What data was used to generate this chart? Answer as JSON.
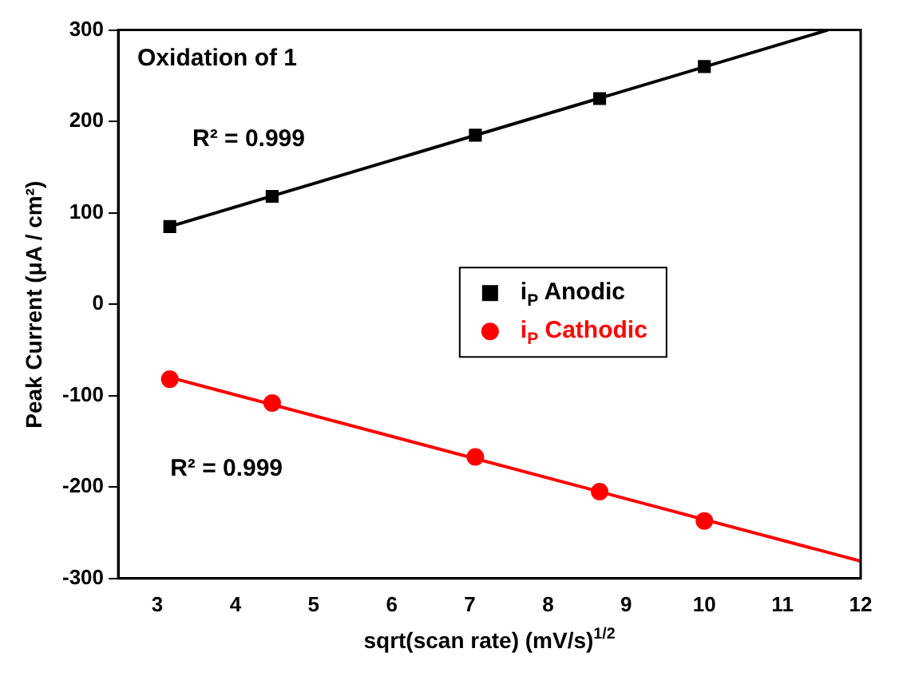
{
  "chart_data": {
    "type": "scatter",
    "xlabel": "sqrt(scan rate) (mV/s)$^{1/2}$",
    "ylabel": "Peak Current (μA / cm²)",
    "xlim": [
      2.5,
      12
    ],
    "xticks": [
      3,
      4,
      5,
      6,
      7,
      8,
      9,
      10,
      11,
      12
    ],
    "ylim": [
      -300,
      300
    ],
    "yticks": [
      -300,
      -200,
      -100,
      0,
      100,
      200,
      300
    ],
    "grid": false,
    "legend": "right",
    "annotations": [
      "Oxidation of 1",
      "R² = 0.999",
      "R² = 0.999"
    ],
    "series": [
      {
        "name": "i$_{P}$ Anodic",
        "type": "scatter",
        "marker": "square",
        "color": "#000000",
        "x": [
          3.16,
          4.47,
          7.07,
          8.66,
          10
        ],
        "values": [
          85,
          118,
          185,
          225,
          260
        ]
      },
      {
        "name": "i$_{P}$ Cathodic",
        "type": "scatter",
        "marker": "circle",
        "color": "#ff0000",
        "x": [
          3.16,
          4.47,
          7.07,
          8.66,
          10
        ],
        "values": [
          -82,
          -108,
          -167,
          -205,
          -237
        ]
      },
      {
        "type": "line",
        "marker": "none",
        "line_style": "solid",
        "color": "#000000",
        "x": [
          3.16,
          11.58
        ],
        "values": [
          85,
          300
        ]
      },
      {
        "type": "line",
        "marker": "none",
        "line_style": "solid",
        "color": "#ff0000",
        "x": [
          3.16,
          12
        ],
        "values": [
          -80,
          -281
        ]
      }
    ]
  }
}
